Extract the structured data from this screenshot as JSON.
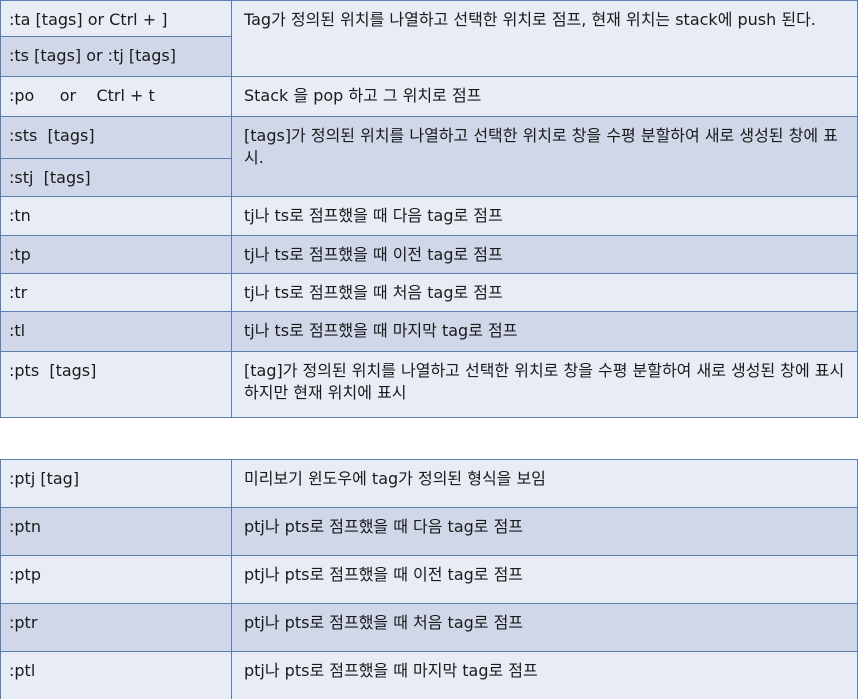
{
  "table1": [
    {
      "cmds": [
        ":ta [tags] or Ctrl + ]",
        ":ts [tags] or :tj [tags]"
      ],
      "desc": "Tag가 정의된 위치를 나열하고 선택한 위치로 점프, 현재 위치는 stack에 push 된다."
    },
    {
      "cmds": [
        ":po     or    Ctrl + t"
      ],
      "desc": "Stack 을 pop 하고 그 위치로 점프"
    },
    {
      "cmds": [
        ":sts  [tags]",
        ":stj  [tags]"
      ],
      "desc": "[tags]가 정의된 위치를 나열하고 선택한 위치로 창을 수평 분할하여 새로 생성된 창에 표시."
    },
    {
      "cmds": [
        ":tn"
      ],
      "desc": "tj나 ts로 점프했을 때 다음 tag로 점프"
    },
    {
      "cmds": [
        ":tp"
      ],
      "desc": "tj나 ts로 점프했을 때 이전 tag로 점프"
    },
    {
      "cmds": [
        ":tr"
      ],
      "desc": "tj나 ts로 점프했을 때 처음 tag로 점프"
    },
    {
      "cmds": [
        ":tl"
      ],
      "desc": "tj나 ts로 점프했을 때 마지막 tag로 점프"
    },
    {
      "cmds": [
        ":pts  [tags]"
      ],
      "desc": "[tag]가 정의된 위치를 나열하고 선택한 위치로 창을 수평 분할하여 새로 생성된 창에 표시하지만 현재 위치에 표시"
    }
  ],
  "table2": [
    {
      "cmd": ":ptj [tag]",
      "desc": "미리보기 윈도우에 tag가 정의된 형식을 보임"
    },
    {
      "cmd": ":ptn",
      "desc": "ptj나 pts로 점프했을 때 다음 tag로 점프"
    },
    {
      "cmd": ":ptp",
      "desc": "ptj나 pts로 점프했을 때 이전 tag로 점프"
    },
    {
      "cmd": ":ptr",
      "desc": "ptj나 pts로 점프했을 때 처음 tag로 점프"
    },
    {
      "cmd": ":ptl",
      "desc": "ptj나 pts로 점프했을 때 마지막 tag로 점프"
    }
  ]
}
